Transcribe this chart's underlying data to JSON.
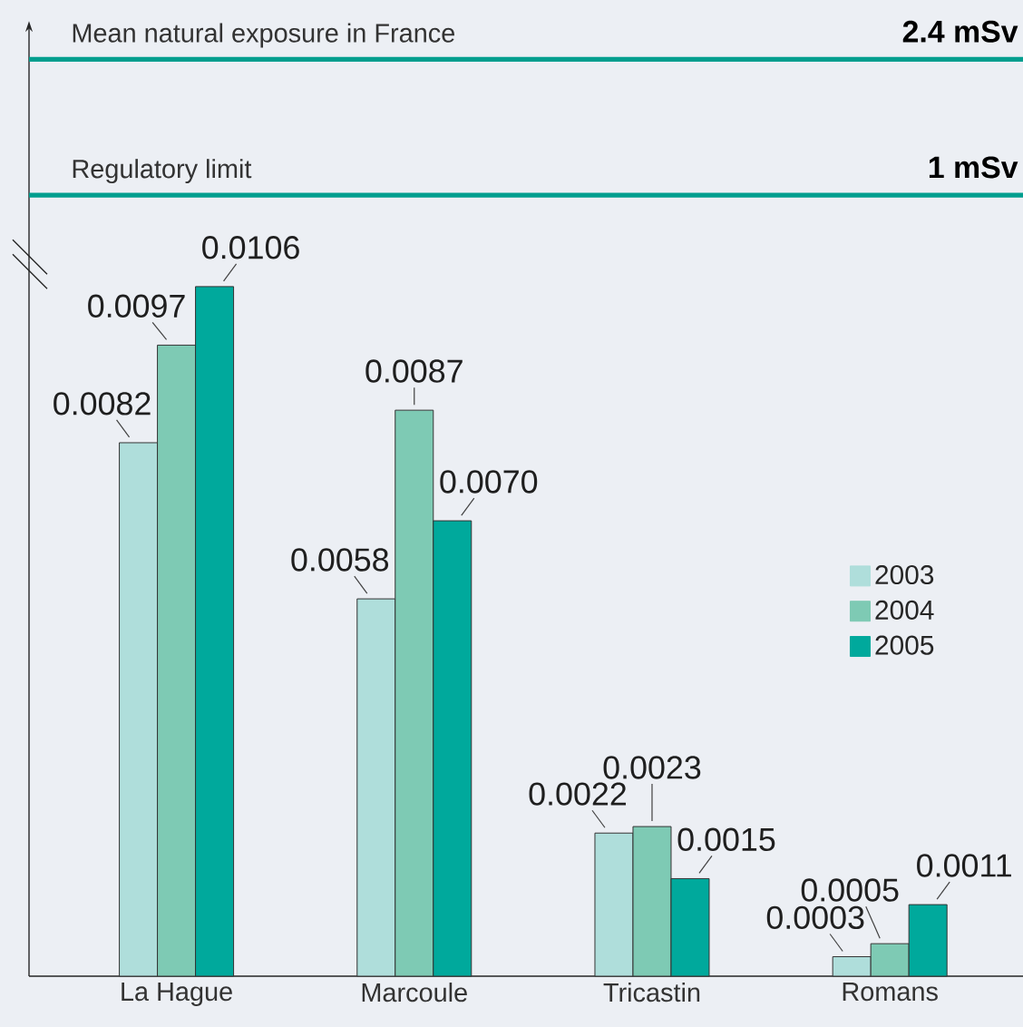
{
  "chart_data": [
    {
      "type": "other",
      "categories": [
        "Mean natural exposure in France",
        "Regulatory limit"
      ],
      "values": [
        2.4,
        1
      ],
      "value_labels": [
        "2.4 mSv",
        "1 mSv"
      ],
      "color": "#009e8e"
    },
    {
      "type": "bar",
      "categories": [
        "La Hague",
        "Marcoule",
        "Tricastin",
        "Romans"
      ],
      "ylim": [
        0,
        0.011
      ],
      "legend": "right",
      "series": [
        {
          "name": "2003",
          "color": "#afdedb",
          "values": [
            0.0082,
            0.0058,
            0.0022,
            0.0003
          ],
          "value_labels": [
            "0.0082",
            "0.0058",
            "0.0022",
            "0.0003"
          ]
        },
        {
          "name": "2004",
          "color": "#7ecab4",
          "values": [
            0.0097,
            0.0087,
            0.0023,
            0.0005
          ],
          "value_labels": [
            "0.0097",
            "0.0087",
            "0.0023",
            "0.0005"
          ]
        },
        {
          "name": "2005",
          "color": "#00a99c",
          "values": [
            0.0106,
            0.007,
            0.0015,
            0.0011
          ],
          "value_labels": [
            "0.0106",
            "0.0070",
            "0.0015",
            "0.0011"
          ]
        }
      ]
    }
  ]
}
